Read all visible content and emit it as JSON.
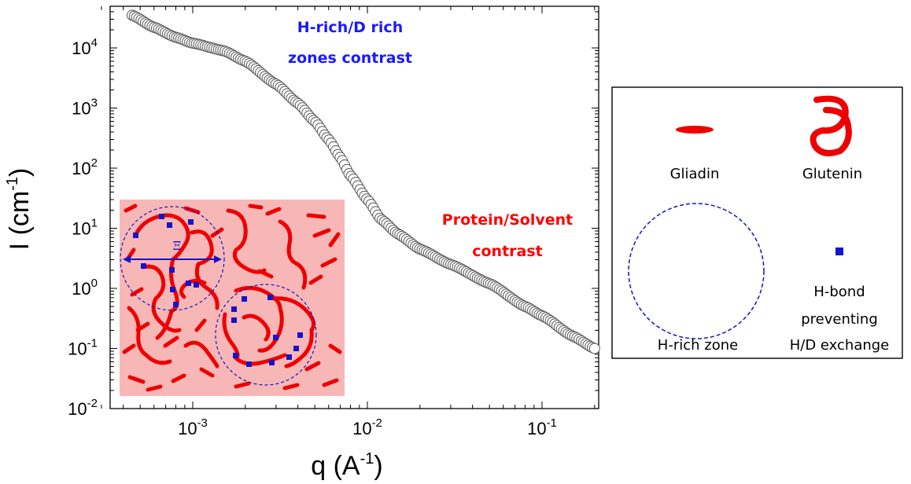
{
  "chart_data": {
    "type": "scatter",
    "xlabel": "q (A",
    "xlabel_sup": "-1",
    "xlabel_close": ")",
    "ylabel": "I (cm",
    "ylabel_sup": "-1",
    "ylabel_close": ")",
    "xscale": "log",
    "yscale": "log",
    "xlim": [
      0.0003,
      0.2
    ],
    "ylim": [
      0.01,
      50000
    ],
    "x_ticks": [
      {
        "base": "10",
        "exp": "-3",
        "value": 0.001
      },
      {
        "base": "10",
        "exp": "-2",
        "value": 0.01
      },
      {
        "base": "10",
        "exp": "-1",
        "value": 0.1
      }
    ],
    "y_ticks": [
      {
        "base": "10",
        "exp": "4",
        "value": 10000
      },
      {
        "base": "10",
        "exp": "3",
        "value": 1000
      },
      {
        "base": "10",
        "exp": "2",
        "value": 100
      },
      {
        "base": "10",
        "exp": "1",
        "value": 10
      },
      {
        "base": "10",
        "exp": "0",
        "value": 1
      },
      {
        "base": "10",
        "exp": "-1",
        "value": 0.1
      },
      {
        "base": "10",
        "exp": "-2",
        "value": 0.01
      }
    ],
    "grid": false,
    "marker": "open-circle",
    "curve_nodes": [
      [
        0.00045,
        35000
      ],
      [
        0.0006,
        22000
      ],
      [
        0.0008,
        15000
      ],
      [
        0.001,
        12000
      ],
      [
        0.0015,
        9000
      ],
      [
        0.002,
        6000
      ],
      [
        0.003,
        2500
      ],
      [
        0.004,
        1200
      ],
      [
        0.005,
        600
      ],
      [
        0.006,
        300
      ],
      [
        0.007,
        150
      ],
      [
        0.008,
        75
      ],
      [
        0.01,
        30
      ],
      [
        0.012,
        14
      ],
      [
        0.015,
        8
      ],
      [
        0.02,
        4.5
      ],
      [
        0.03,
        2.5
      ],
      [
        0.05,
        1.2
      ],
      [
        0.08,
        0.5
      ],
      [
        0.1,
        0.35
      ],
      [
        0.15,
        0.16
      ],
      [
        0.2,
        0.1
      ]
    ],
    "annotations": [
      {
        "lines": [
          "H-rich/D rich",
          "zones contrast"
        ],
        "color": "#1a1aff"
      },
      {
        "lines": [
          "Protein/Solvent",
          "contrast"
        ],
        "color": "#ff0000"
      }
    ]
  },
  "legend": {
    "gliadin": "Gliadin",
    "glutenin": "Glutenin",
    "hrich_zone": "H-rich zone",
    "hbond_lines": [
      "H-bond",
      "preventing",
      "H/D exchange"
    ]
  },
  "inset": {
    "symbol": "Ξ",
    "background": "#f8b7b7",
    "strand_color": "#ee0000",
    "zone_color": "#1414c8"
  }
}
